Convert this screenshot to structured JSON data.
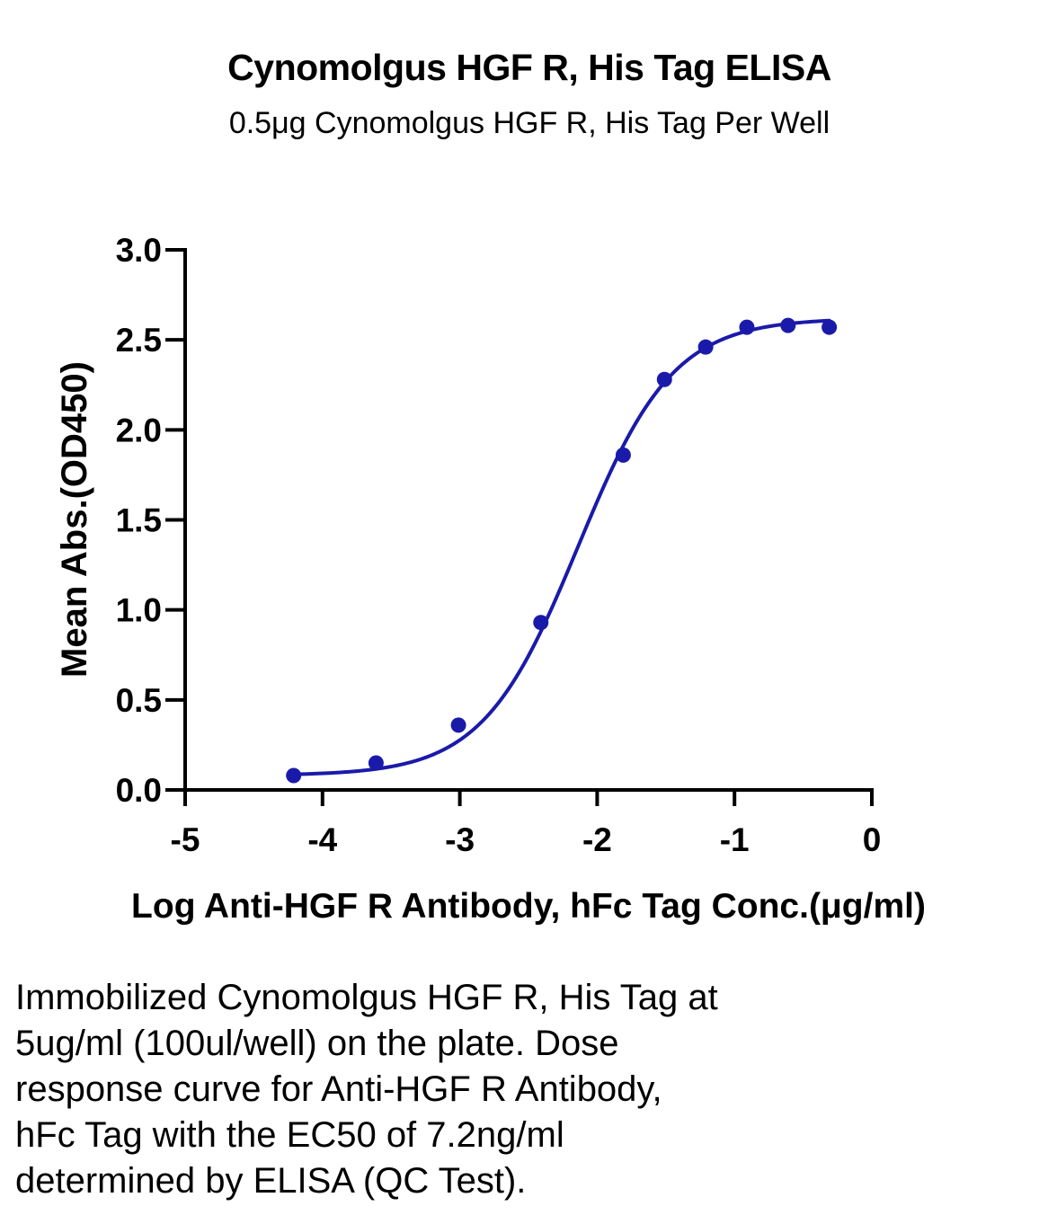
{
  "header": {
    "title": "Cynomolgus HGF R, His Tag ELISA",
    "subtitle": "0.5μg Cynomolgus HGF R, His Tag Per Well"
  },
  "chart_data": {
    "type": "scatter",
    "title": "Cynomolgus HGF R, His Tag ELISA",
    "subtitle": "0.5μg Cynomolgus HGF R, His Tag Per Well",
    "xlabel": "Log Anti-HGF R Antibody, hFc Tag Conc.(μg/ml)",
    "ylabel": "Mean Abs.(OD450)",
    "xlim": [
      -5,
      0
    ],
    "ylim": [
      0,
      3.0
    ],
    "x_ticks": [
      -5,
      -4,
      -3,
      -2,
      -1,
      0
    ],
    "x_tick_labels": [
      "-5",
      "-4",
      "-3",
      "-2",
      "-1",
      "0"
    ],
    "y_ticks": [
      0,
      0.5,
      1.0,
      1.5,
      2.0,
      2.5,
      3.0
    ],
    "y_tick_labels": [
      "0.0",
      "0.5",
      "1.0",
      "1.5",
      "2.0",
      "2.5",
      "3.0"
    ],
    "grid": false,
    "legend": "none",
    "color": "#1a1aaa",
    "series": [
      {
        "x": [
          -4.21,
          -3.61,
          -3.01,
          -2.41,
          -1.81,
          -1.51,
          -1.21,
          -0.91,
          -0.61,
          -0.31
        ],
        "y": [
          0.08,
          0.15,
          0.36,
          0.93,
          1.86,
          2.28,
          2.46,
          2.57,
          2.58,
          2.57
        ],
        "fit": "4PL",
        "fit_range": [
          -4.21,
          -0.31
        ]
      }
    ]
  },
  "caption": {
    "lines": [
      "Immobilized Cynomolgus HGF R, His Tag at",
      "5ug/ml (100ul/well) on the plate. Dose",
      "response curve for Anti-HGF R Antibody,",
      "hFc Tag with the EC50 of 7.2ng/ml",
      "determined by ELISA (QC Test)."
    ]
  }
}
